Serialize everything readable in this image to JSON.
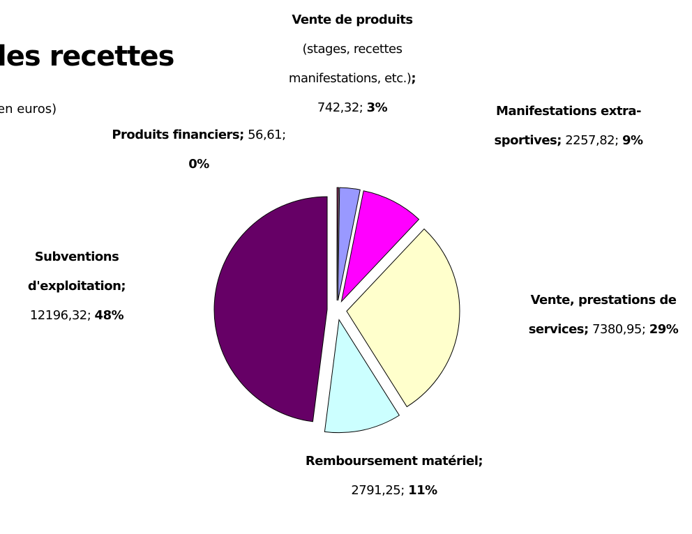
{
  "chart_data": {
    "type": "pie",
    "title": "les recettes",
    "subtitle": "en euros)",
    "separator": ";",
    "categories": [
      "Produits financiers",
      "Vente de produits",
      "Manifestations extra-sportives",
      "Vente, prestations de services",
      "Remboursement matériel",
      "Subventions d'exploitation"
    ],
    "category_notes": [
      null,
      "(stages, recettes manifestations, etc.)",
      null,
      null,
      null,
      null
    ],
    "values": [
      56.61,
      742.32,
      2257.82,
      7380.95,
      2791.25,
      12196.32
    ],
    "value_labels": [
      "56,61",
      "742,32",
      "2257,82",
      "7380,95",
      "2791,25",
      "12196,32"
    ],
    "percent_labels": [
      "0%",
      "3%",
      "9%",
      "29%",
      "11%",
      "48%"
    ],
    "colors": [
      "#993366",
      "#9999ff",
      "#ff00ff",
      "#ffffcc",
      "#ccffff",
      "#660066"
    ]
  }
}
